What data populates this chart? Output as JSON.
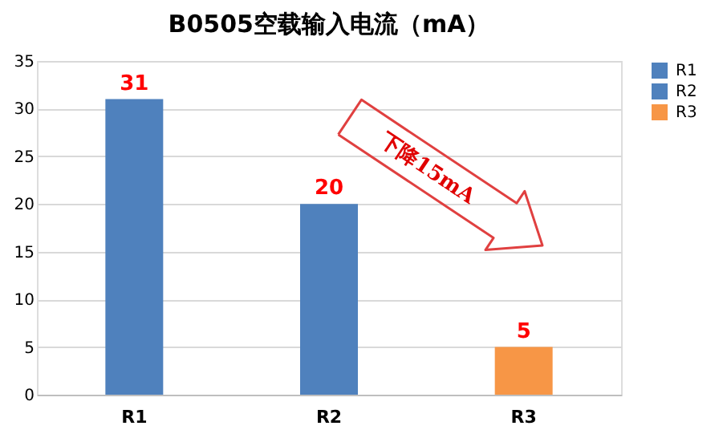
{
  "chart_data": {
    "type": "bar",
    "title": "B0505空载输入电流（mA）",
    "categories": [
      "R1",
      "R2",
      "R3"
    ],
    "stacked": true,
    "series": [
      {
        "name": "R1",
        "color": "#4f81bd",
        "values": [
          31,
          null,
          null
        ]
      },
      {
        "name": "R2",
        "color": "#4f81bd",
        "values": [
          null,
          20,
          null
        ]
      },
      {
        "name": "R3",
        "color": "#f79646",
        "values": [
          null,
          null,
          5
        ]
      }
    ],
    "ylim": [
      0,
      35
    ],
    "yticks": [
      0,
      5,
      10,
      15,
      20,
      25,
      30,
      35
    ],
    "grid": "y",
    "legend": "right",
    "data_labels": true,
    "annotations": [
      "下降15mA"
    ]
  }
}
